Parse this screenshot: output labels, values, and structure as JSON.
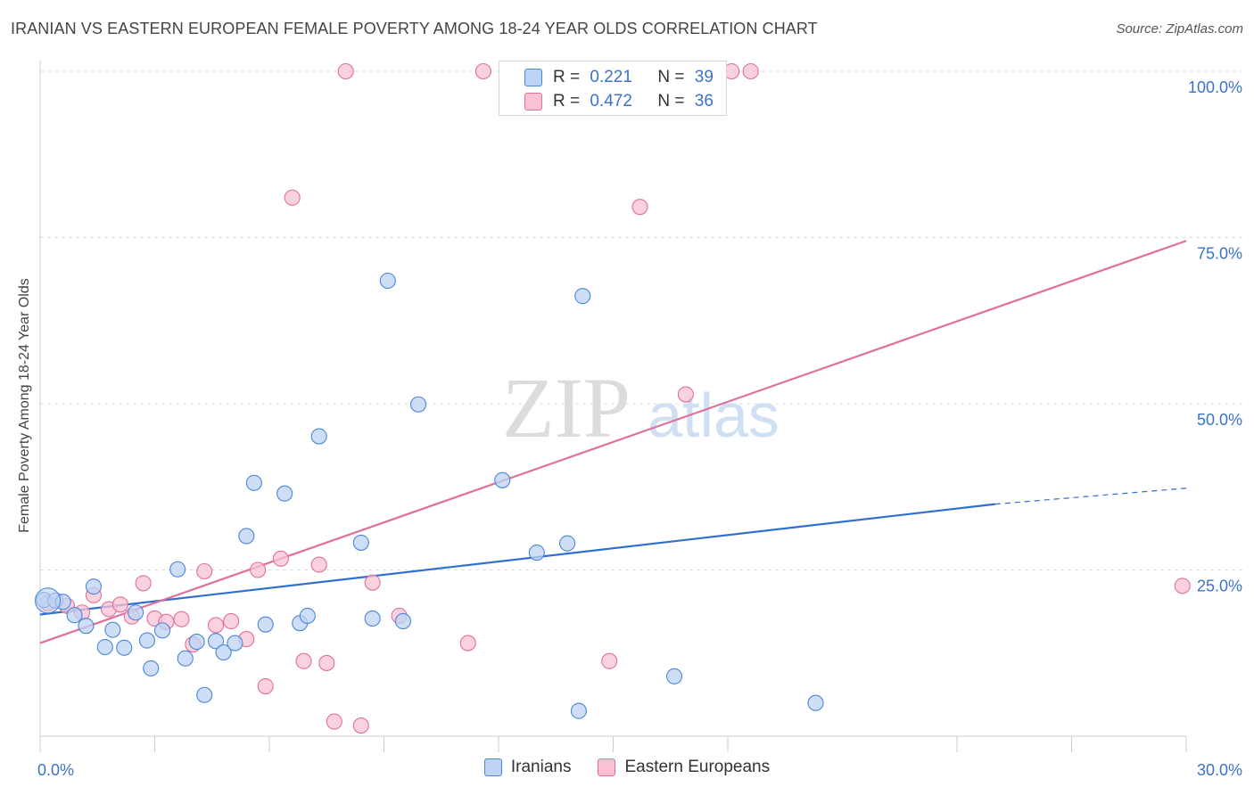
{
  "title": "IRANIAN VS EASTERN EUROPEAN FEMALE POVERTY AMONG 18-24 YEAR OLDS CORRELATION CHART",
  "source": "Source: ZipAtlas.com",
  "watermark": {
    "zip": "ZIP",
    "atlas": "atlas"
  },
  "colors": {
    "blue": "#4a86d8",
    "blue_fill": "#bcd3f3",
    "pink": "#e0709a",
    "pink_fill": "#f8c2d4",
    "tick": "#3b73c9"
  },
  "legend_top": {
    "rows": [
      {
        "r_label": "R = ",
        "r_value": "0.221",
        "n_label": "N = ",
        "n_value": "39"
      },
      {
        "r_label": "R = ",
        "r_value": "0.472",
        "n_label": "N = ",
        "n_value": "36"
      }
    ]
  },
  "bottom_legend": [
    "Iranians",
    "Eastern Europeans"
  ],
  "chart_data": {
    "type": "scatter",
    "title": "IRANIAN VS EASTERN EUROPEAN FEMALE POVERTY AMONG 18-24 YEAR OLDS CORRELATION CHART",
    "xlabel": "",
    "ylabel": "Female Poverty Among 18-24 Year Olds",
    "xlim": [
      0,
      30
    ],
    "ylim": [
      0,
      100
    ],
    "x_tick_labels": [
      "0.0%",
      "30.0%"
    ],
    "y_tick_labels": [
      "100.0%",
      "75.0%",
      "50.0%",
      "25.0%"
    ],
    "y_ticks": [
      100,
      75,
      50,
      25
    ],
    "grid": true,
    "legend_position": "top-center",
    "series": [
      {
        "name": "Iranians",
        "r": 0.221,
        "n": 39,
        "trend": {
          "x": [
            0,
            25
          ],
          "y": [
            18.3,
            34.9
          ],
          "dashed_to": [
            30,
            37.3
          ]
        },
        "points": [
          [
            0.1,
            20.5
          ],
          [
            0.4,
            20.4
          ],
          [
            0.6,
            20.2
          ],
          [
            0.9,
            18.2
          ],
          [
            1.2,
            16.6
          ],
          [
            1.4,
            22.5
          ],
          [
            1.7,
            13.4
          ],
          [
            1.9,
            16.0
          ],
          [
            2.2,
            13.3
          ],
          [
            2.5,
            18.6
          ],
          [
            2.8,
            14.4
          ],
          [
            2.9,
            10.2
          ],
          [
            3.2,
            15.9
          ],
          [
            3.6,
            25.1
          ],
          [
            3.8,
            11.7
          ],
          [
            4.1,
            14.2
          ],
          [
            4.3,
            6.2
          ],
          [
            4.6,
            14.3
          ],
          [
            4.8,
            12.6
          ],
          [
            5.1,
            14.0
          ],
          [
            5.4,
            30.1
          ],
          [
            5.6,
            38.1
          ],
          [
            5.9,
            16.8
          ],
          [
            6.4,
            36.5
          ],
          [
            6.8,
            17.0
          ],
          [
            7.0,
            18.1
          ],
          [
            7.3,
            45.1
          ],
          [
            8.4,
            29.1
          ],
          [
            8.7,
            17.7
          ],
          [
            9.1,
            68.5
          ],
          [
            9.5,
            17.3
          ],
          [
            9.9,
            49.9
          ],
          [
            12.1,
            38.5
          ],
          [
            13.0,
            27.6
          ],
          [
            13.8,
            29.0
          ],
          [
            14.1,
            3.8
          ],
          [
            14.2,
            66.2
          ],
          [
            16.6,
            9.0
          ],
          [
            20.3,
            5.0
          ]
        ]
      },
      {
        "name": "Eastern Europeans",
        "r": 0.472,
        "n": 36,
        "trend": {
          "x": [
            0,
            30
          ],
          "y": [
            14.0,
            74.5
          ]
        },
        "points": [
          [
            0.2,
            20.0
          ],
          [
            0.7,
            19.6
          ],
          [
            1.1,
            18.6
          ],
          [
            1.4,
            21.2
          ],
          [
            1.8,
            19.1
          ],
          [
            2.1,
            19.8
          ],
          [
            2.4,
            18.0
          ],
          [
            2.7,
            23.0
          ],
          [
            3.0,
            17.7
          ],
          [
            3.3,
            17.2
          ],
          [
            3.7,
            17.6
          ],
          [
            4.0,
            13.8
          ],
          [
            4.3,
            24.8
          ],
          [
            4.6,
            16.7
          ],
          [
            5.0,
            17.3
          ],
          [
            5.4,
            14.6
          ],
          [
            5.7,
            25.0
          ],
          [
            5.9,
            7.5
          ],
          [
            6.3,
            26.7
          ],
          [
            6.6,
            81.0
          ],
          [
            6.9,
            11.3
          ],
          [
            7.3,
            25.8
          ],
          [
            7.5,
            11.0
          ],
          [
            7.7,
            2.2
          ],
          [
            8.0,
            100.0
          ],
          [
            8.4,
            1.6
          ],
          [
            8.7,
            23.1
          ],
          [
            9.4,
            18.1
          ],
          [
            11.2,
            14.0
          ],
          [
            11.6,
            100.0
          ],
          [
            14.9,
            11.3
          ],
          [
            15.7,
            79.6
          ],
          [
            16.9,
            51.4
          ],
          [
            18.1,
            100.0
          ],
          [
            18.6,
            100.0
          ],
          [
            29.9,
            22.6
          ]
        ]
      }
    ]
  }
}
